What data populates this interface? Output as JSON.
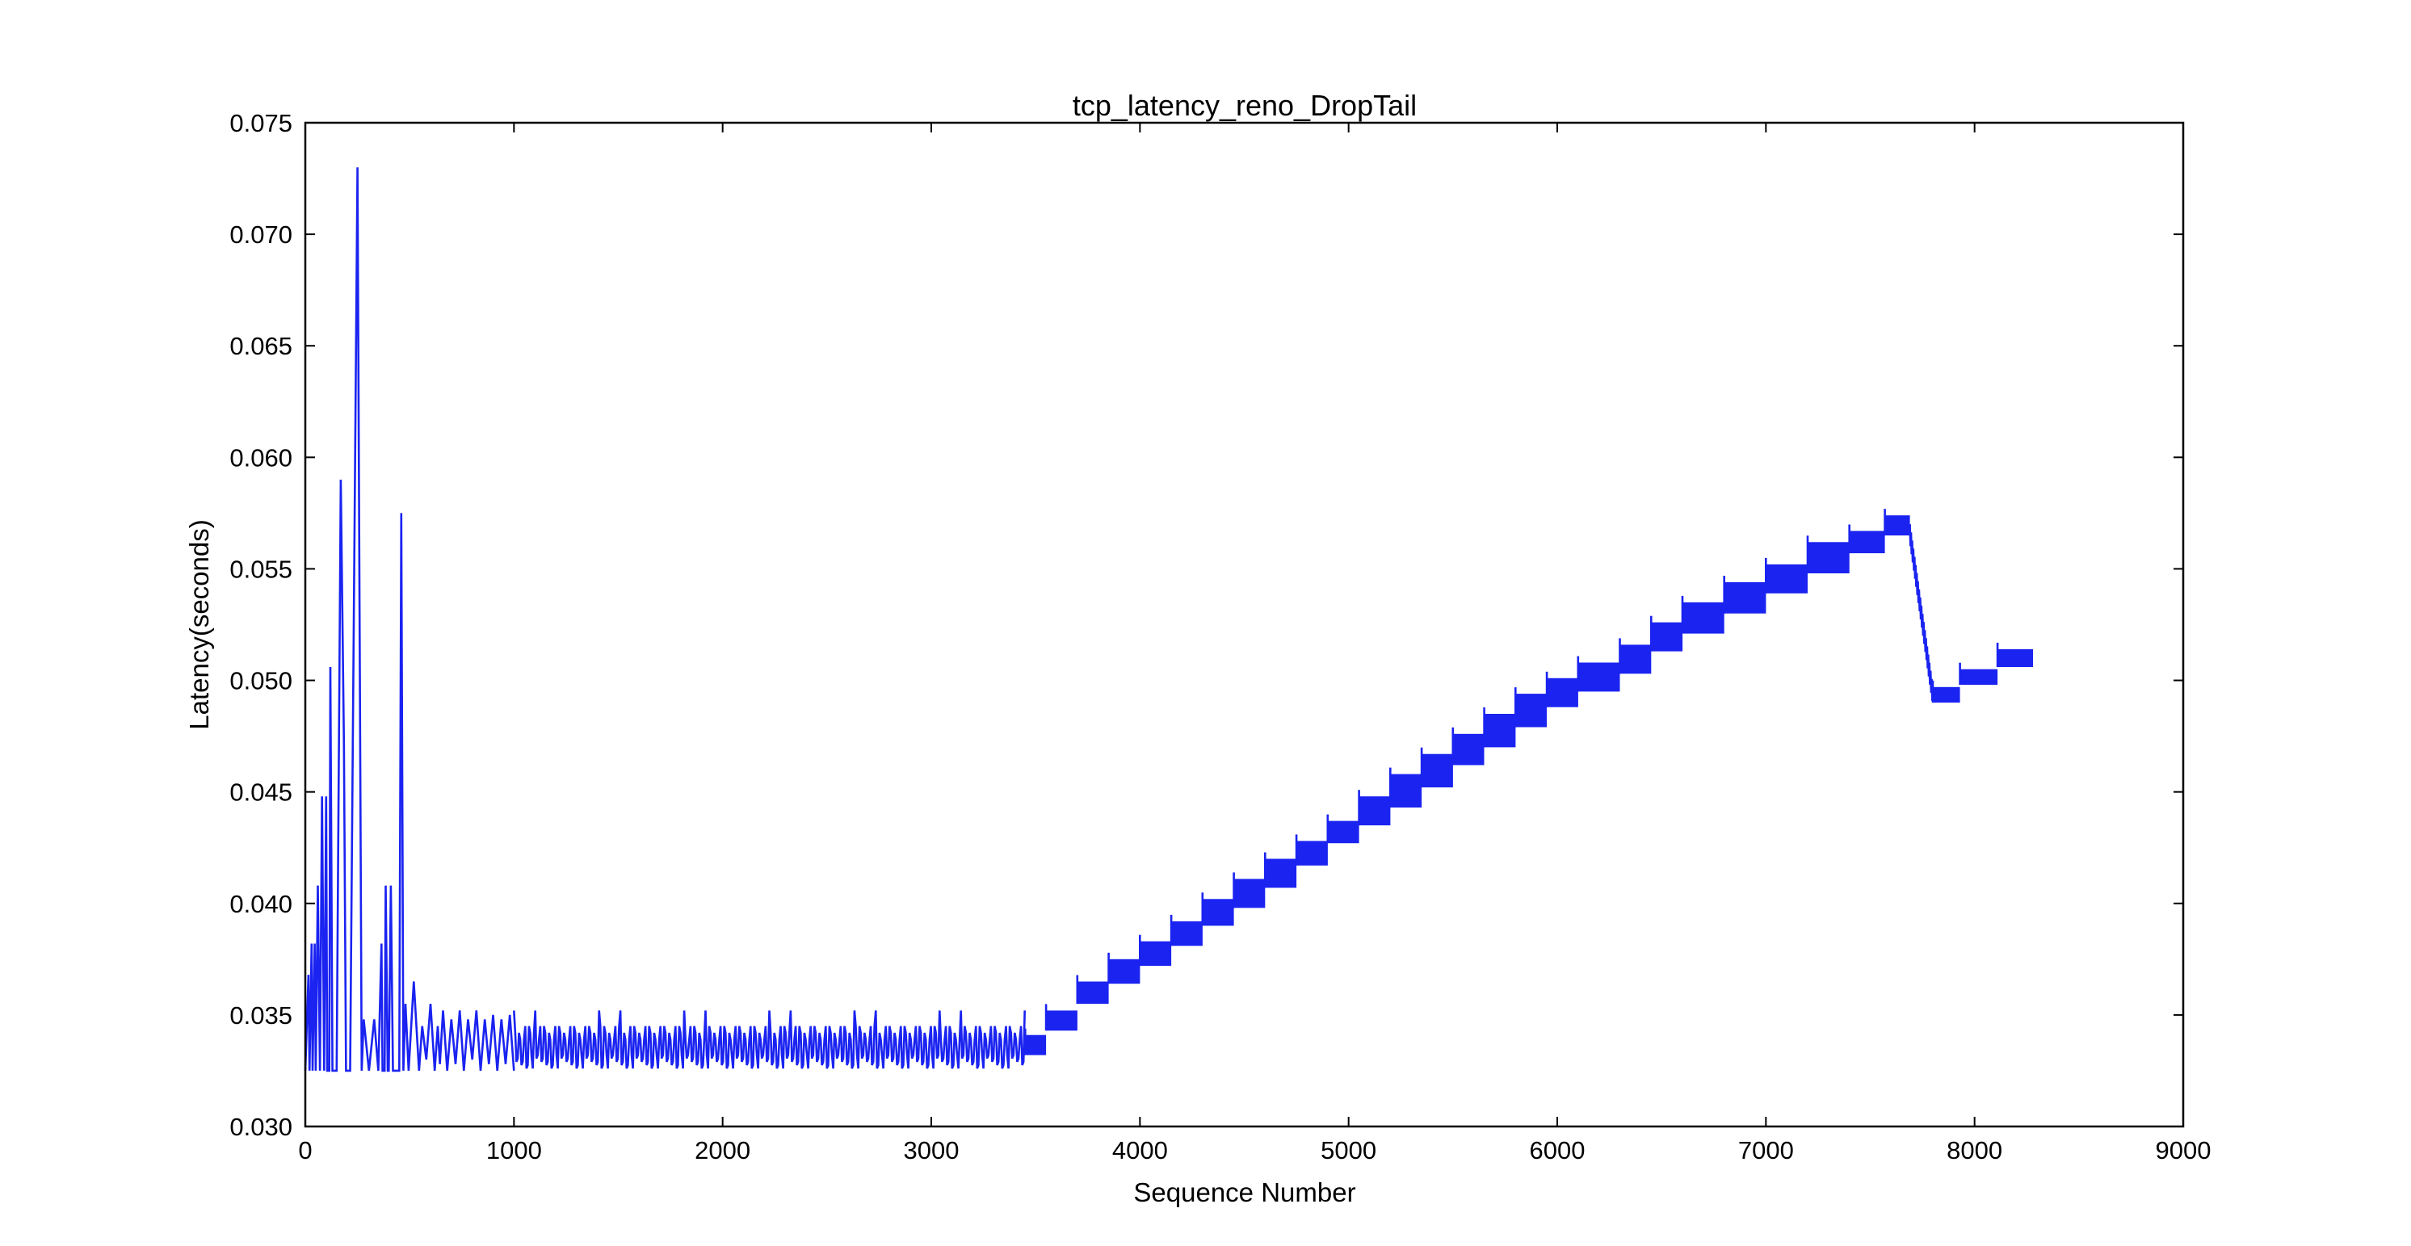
{
  "chart_data": {
    "type": "line",
    "title": "tcp_latency_reno_DropTail",
    "xlabel": "Sequence Number",
    "ylabel": "Latency(seconds)",
    "xlim": [
      0,
      9000
    ],
    "ylim": [
      0.03,
      0.075
    ],
    "x_ticks": [
      "0",
      "1000",
      "2000",
      "3000",
      "4000",
      "5000",
      "6000",
      "7000",
      "8000",
      "9000"
    ],
    "y_ticks": [
      "0.030",
      "0.035",
      "0.040",
      "0.045",
      "0.050",
      "0.055",
      "0.060",
      "0.065",
      "0.070",
      "0.075"
    ],
    "grid": false,
    "legend": "none",
    "series_color": "#1a23f0",
    "series": [
      {
        "x": [
          0,
          15,
          20,
          30,
          35,
          45,
          50,
          60,
          70,
          80,
          90,
          100,
          105,
          115,
          120,
          130,
          150,
          170,
          185,
          195,
          215,
          250,
          270,
          280,
          305,
          330,
          350,
          365,
          370,
          380,
          385,
          395,
          400,
          410,
          420,
          430,
          440,
          450,
          460,
          470,
          480,
          495,
          520,
          545,
          560,
          580,
          600,
          620,
          635,
          645,
          660,
          680,
          700,
          720,
          740,
          760,
          780,
          800,
          820,
          840,
          860,
          880,
          900,
          920,
          940,
          960,
          980,
          1000
        ],
        "y": [
          0.0325,
          0.0368,
          0.0325,
          0.0382,
          0.0325,
          0.0382,
          0.0325,
          0.0408,
          0.0325,
          0.0448,
          0.0325,
          0.0448,
          0.0325,
          0.0325,
          0.0506,
          0.0325,
          0.0325,
          0.059,
          0.0472,
          0.0325,
          0.0325,
          0.073,
          0.0325,
          0.0348,
          0.0325,
          0.0348,
          0.0325,
          0.0382,
          0.0325,
          0.0325,
          0.0408,
          0.0325,
          0.0325,
          0.0408,
          0.0325,
          0.0325,
          0.0325,
          0.0325,
          0.0575,
          0.0325,
          0.0355,
          0.0325,
          0.0365,
          0.0325,
          0.0345,
          0.033,
          0.0355,
          0.0325,
          0.0345,
          0.0328,
          0.0352,
          0.0325,
          0.0348,
          0.0328,
          0.0352,
          0.0325,
          0.0348,
          0.033,
          0.0352,
          0.0325,
          0.0348,
          0.0328,
          0.035,
          0.0325,
          0.0348,
          0.0328,
          0.035,
          0.0325
        ]
      }
    ],
    "band_segments": [
      {
        "x0": 1000,
        "x1": 3450,
        "ylow": 0.0326,
        "yhigh": 0.0345
      },
      {
        "x0": 3450,
        "x1": 3550,
        "ylow": 0.0332,
        "yhigh": 0.0341
      },
      {
        "x0": 3550,
        "x1": 3700,
        "ylow": 0.0343,
        "yhigh": 0.0352
      },
      {
        "x0": 3700,
        "x1": 3850,
        "ylow": 0.0355,
        "yhigh": 0.0365
      },
      {
        "x0": 3850,
        "x1": 4000,
        "ylow": 0.0364,
        "yhigh": 0.0375
      },
      {
        "x0": 4000,
        "x1": 4150,
        "ylow": 0.0372,
        "yhigh": 0.0383
      },
      {
        "x0": 4150,
        "x1": 4300,
        "ylow": 0.0381,
        "yhigh": 0.0392
      },
      {
        "x0": 4300,
        "x1": 4450,
        "ylow": 0.039,
        "yhigh": 0.0402
      },
      {
        "x0": 4450,
        "x1": 4600,
        "ylow": 0.0398,
        "yhigh": 0.0411
      },
      {
        "x0": 4600,
        "x1": 4750,
        "ylow": 0.0407,
        "yhigh": 0.042
      },
      {
        "x0": 4750,
        "x1": 4900,
        "ylow": 0.0417,
        "yhigh": 0.0428
      },
      {
        "x0": 4900,
        "x1": 5050,
        "ylow": 0.0427,
        "yhigh": 0.0437
      },
      {
        "x0": 5050,
        "x1": 5200,
        "ylow": 0.0435,
        "yhigh": 0.0448
      },
      {
        "x0": 5200,
        "x1": 5350,
        "ylow": 0.0443,
        "yhigh": 0.0458
      },
      {
        "x0": 5350,
        "x1": 5500,
        "ylow": 0.0452,
        "yhigh": 0.0467
      },
      {
        "x0": 5500,
        "x1": 5650,
        "ylow": 0.0462,
        "yhigh": 0.0476
      },
      {
        "x0": 5650,
        "x1": 5800,
        "ylow": 0.047,
        "yhigh": 0.0485
      },
      {
        "x0": 5800,
        "x1": 5950,
        "ylow": 0.0479,
        "yhigh": 0.0494
      },
      {
        "x0": 5950,
        "x1": 6100,
        "ylow": 0.0488,
        "yhigh": 0.0501
      },
      {
        "x0": 6100,
        "x1": 6300,
        "ylow": 0.0495,
        "yhigh": 0.0508
      },
      {
        "x0": 6300,
        "x1": 6450,
        "ylow": 0.0503,
        "yhigh": 0.0516
      },
      {
        "x0": 6450,
        "x1": 6600,
        "ylow": 0.0513,
        "yhigh": 0.0526
      },
      {
        "x0": 6600,
        "x1": 6800,
        "ylow": 0.0521,
        "yhigh": 0.0535
      },
      {
        "x0": 6800,
        "x1": 7000,
        "ylow": 0.053,
        "yhigh": 0.0544
      },
      {
        "x0": 7000,
        "x1": 7200,
        "ylow": 0.0539,
        "yhigh": 0.0552
      },
      {
        "x0": 7200,
        "x1": 7400,
        "ylow": 0.0548,
        "yhigh": 0.0562
      },
      {
        "x0": 7400,
        "x1": 7570,
        "ylow": 0.0557,
        "yhigh": 0.0567
      },
      {
        "x0": 7570,
        "x1": 7690,
        "ylow": 0.0565,
        "yhigh": 0.0574
      },
      {
        "x0": 7690,
        "x1": 7800,
        "ylow": 0.0495,
        "yhigh": 0.057
      },
      {
        "x0": 7800,
        "x1": 7930,
        "ylow": 0.049,
        "yhigh": 0.0497
      },
      {
        "x0": 7930,
        "x1": 8110,
        "ylow": 0.0498,
        "yhigh": 0.0505
      },
      {
        "x0": 8110,
        "x1": 8280,
        "ylow": 0.0506,
        "yhigh": 0.0514
      }
    ]
  }
}
